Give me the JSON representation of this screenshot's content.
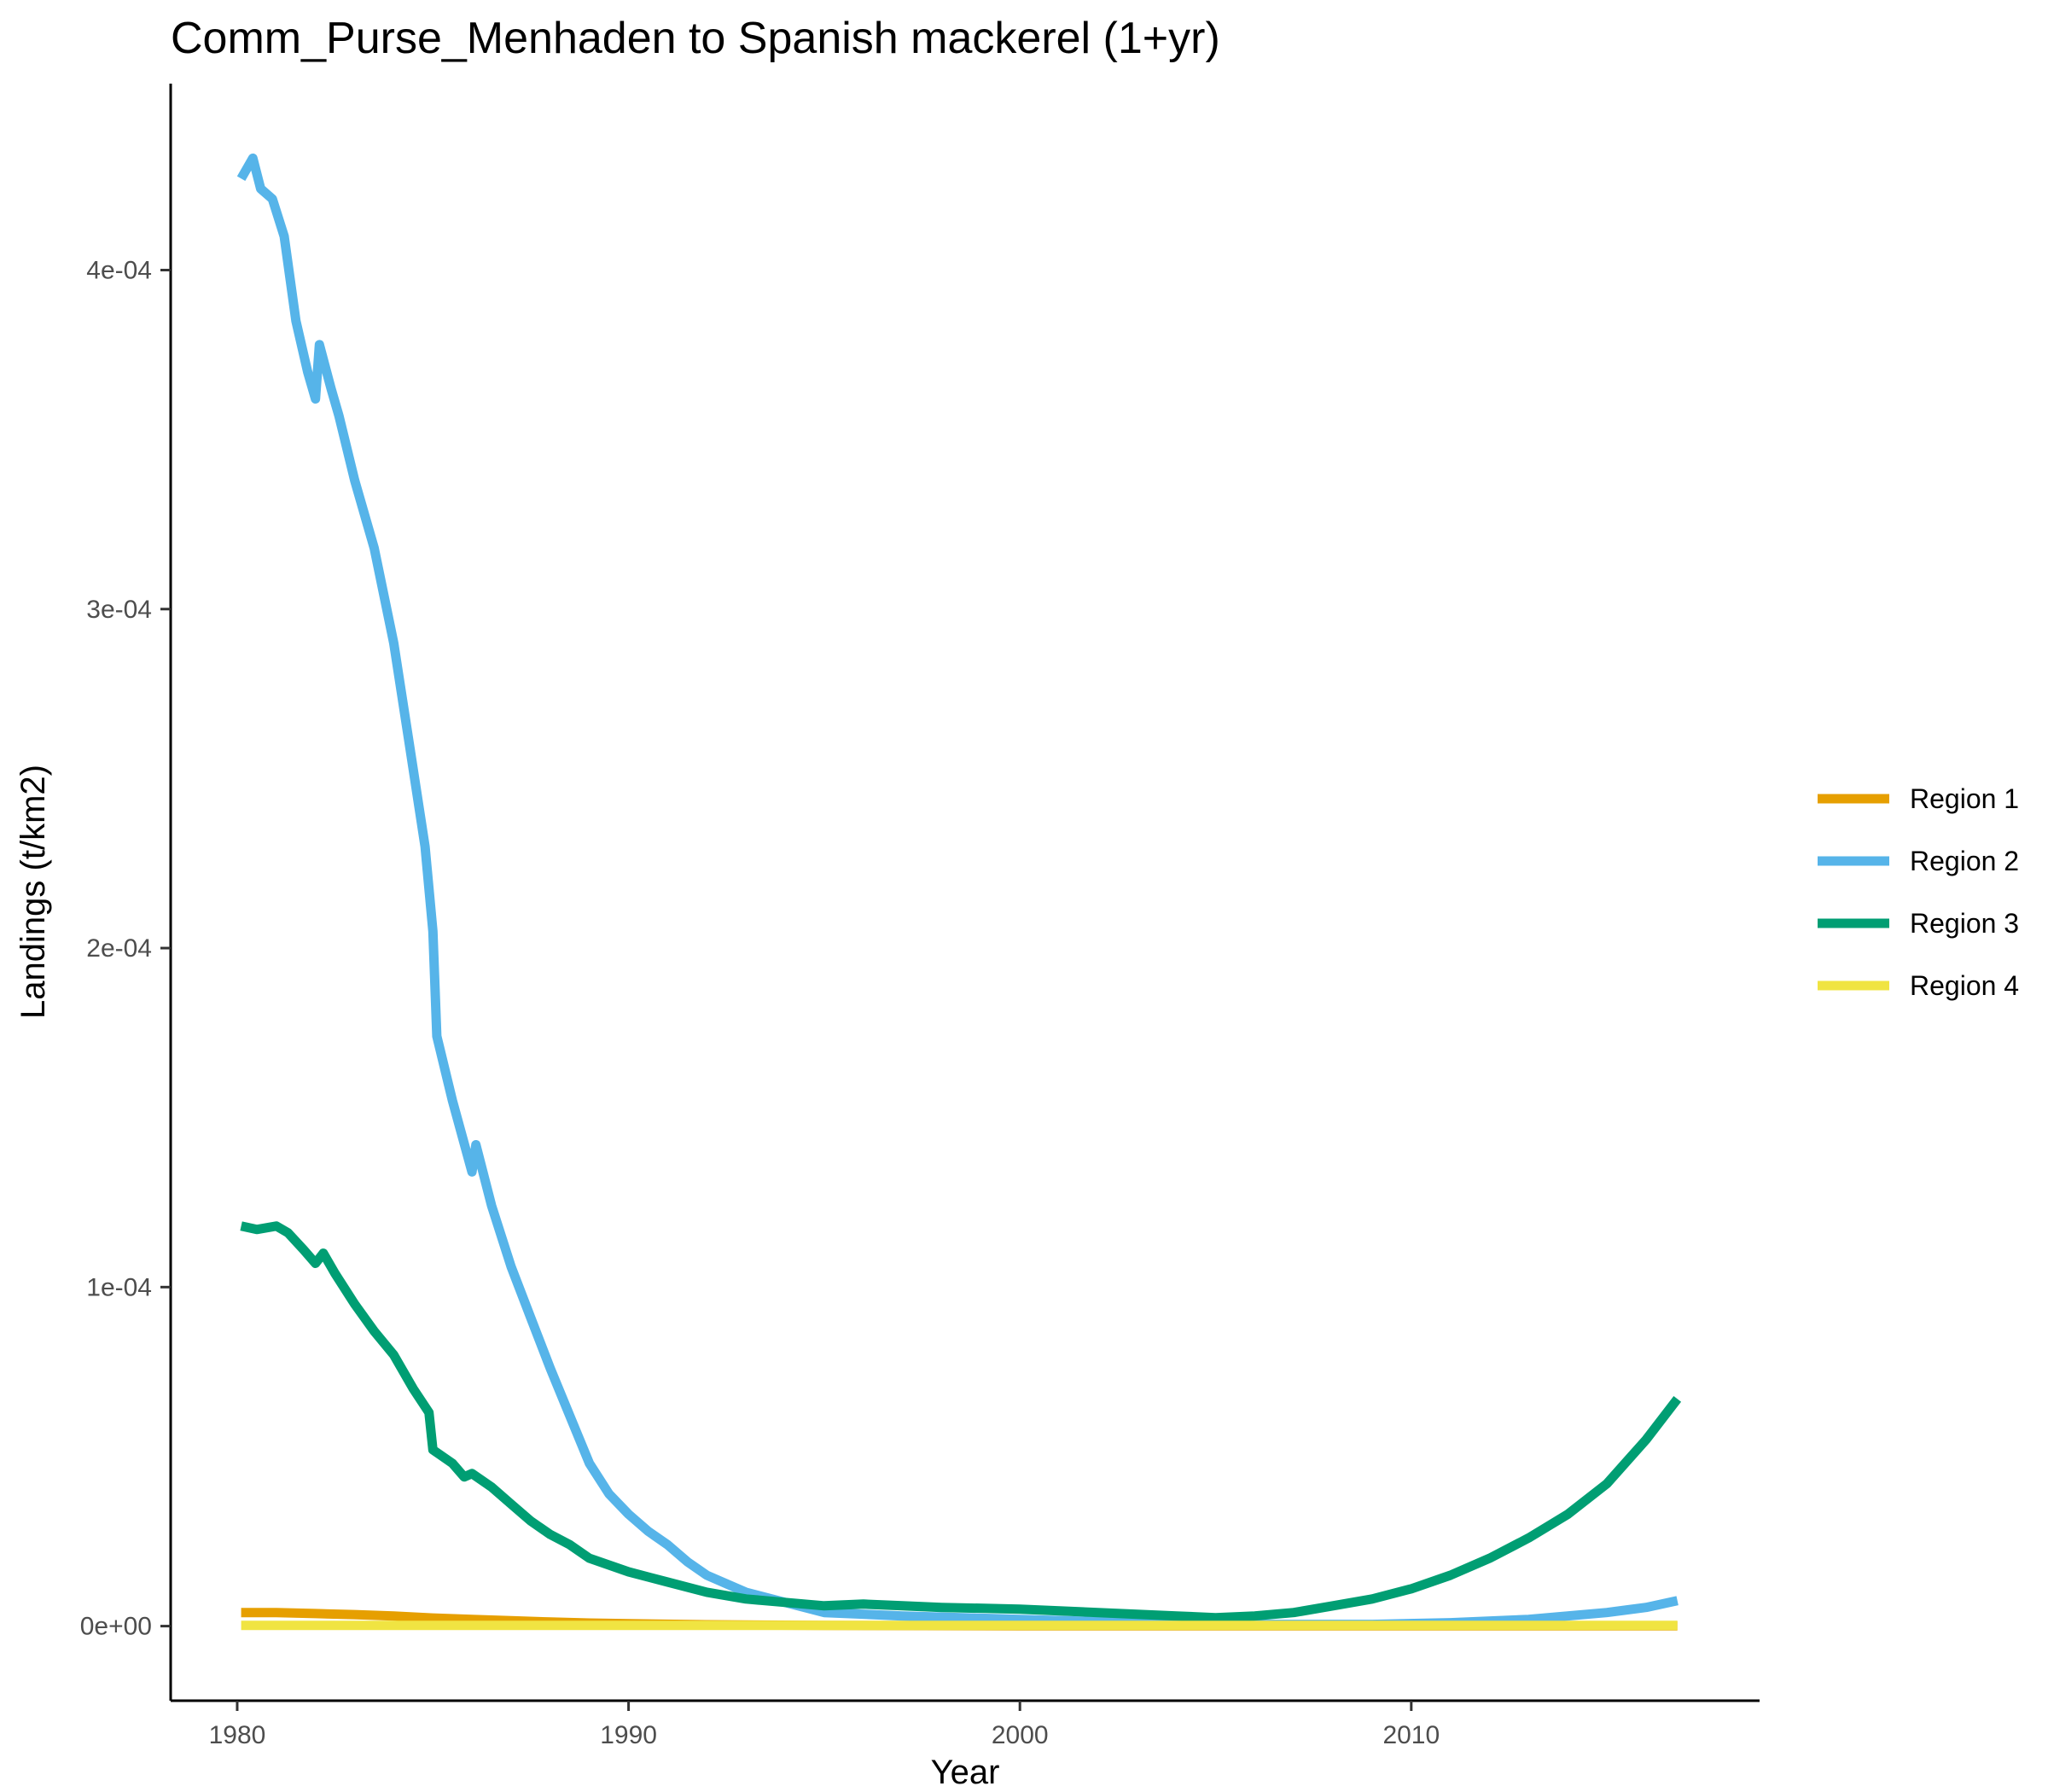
{
  "chart_data": {
    "type": "line",
    "title": "Comm_Purse_Menhaden to Spanish mackerel (1+yr)",
    "xlabel": "Year",
    "ylabel": "Landings (t/km2)",
    "xlim": [
      1978.3,
      2018.9
    ],
    "ylim": [
      -2.2e-05,
      0.000455
    ],
    "xticks": [
      1980,
      1990,
      2000,
      2010
    ],
    "xtick_labels": [
      "1980",
      "1990",
      "2000",
      "2010"
    ],
    "yticks": [
      0,
      0.0001,
      0.0002,
      0.0003,
      0.0004
    ],
    "ytick_labels": [
      "0e+00",
      "1e-04",
      "2e-04",
      "3e-04",
      "4e-04"
    ],
    "grid": false,
    "legend_position": "right",
    "series": [
      {
        "name": "Region 1",
        "color": "#E69F00",
        "x": [
          1980.1,
          1981,
          1982,
          1983,
          1984,
          1985,
          1986,
          1987,
          1988,
          1989,
          1990,
          1992,
          1995,
          2000,
          2005,
          2010,
          2016.8
        ],
        "y": [
          4e-06,
          4e-06,
          3.7e-06,
          3.4e-06,
          3e-06,
          2.4e-06,
          2e-06,
          1.6e-06,
          1.2e-06,
          9e-07,
          7e-07,
          4e-07,
          2e-07,
          1e-07,
          1e-07,
          1e-07,
          1e-07
        ]
      },
      {
        "name": "Region 2",
        "color": "#56B4E9",
        "x": [
          1980.1,
          1980.4,
          1980.6,
          1980.9,
          1981.2,
          1981.5,
          1981.8,
          1982.0,
          1982.1,
          1982.4,
          1982.6,
          1983.0,
          1983.5,
          1984.0,
          1984.4,
          1984.8,
          1985.0,
          1985.1,
          1985.5,
          1986.0,
          1986.1,
          1986.5,
          1987.0,
          1987.5,
          1988.0,
          1988.5,
          1989.0,
          1989.5,
          1990.0,
          1990.5,
          1991.0,
          1991.5,
          1992.0,
          1993.0,
          1994.0,
          1995.0,
          1997.0,
          2000.0,
          2003.0,
          2006.0,
          2009.0,
          2011.0,
          2013.0,
          2015.0,
          2016.0,
          2016.8
        ],
        "y": [
          0.000427,
          0.000433,
          0.000424,
          0.000421,
          0.00041,
          0.000385,
          0.00037,
          0.000362,
          0.000378,
          0.000365,
          0.000357,
          0.000338,
          0.000318,
          0.00029,
          0.00026,
          0.00023,
          0.000205,
          0.000174,
          0.000155,
          0.000134,
          0.000142,
          0.000124,
          0.000106,
          9.1e-05,
          7.6e-05,
          6.2e-05,
          4.8e-05,
          3.9e-05,
          3.3e-05,
          2.8e-05,
          2.4e-05,
          1.9e-05,
          1.5e-05,
          1e-05,
          7e-06,
          4e-06,
          3e-06,
          2e-06,
          1e-06,
          5e-07,
          5e-07,
          1e-06,
          2e-06,
          4e-06,
          5.5e-06,
          7.5e-06
        ]
      },
      {
        "name": "Region 3",
        "color": "#009E73",
        "x": [
          1980.1,
          1980.5,
          1981.0,
          1981.3,
          1981.7,
          1982.0,
          1982.2,
          1982.5,
          1983.0,
          1983.5,
          1984.0,
          1984.5,
          1984.9,
          1985.0,
          1985.5,
          1985.8,
          1986.0,
          1986.5,
          1987.0,
          1987.5,
          1988.0,
          1988.5,
          1989.0,
          1990.0,
          1991.0,
          1992.0,
          1993.0,
          1994.0,
          1995.0,
          1996.0,
          1997.0,
          1998.0,
          2000.0,
          2002.0,
          2004.0,
          2005.0,
          2006.0,
          2007.0,
          2008.0,
          2009.0,
          2010.0,
          2011.0,
          2012.0,
          2013.0,
          2014.0,
          2015.0,
          2016.0,
          2016.8
        ],
        "y": [
          0.000118,
          0.000117,
          0.000118,
          0.000116,
          0.000111,
          0.000107,
          0.00011,
          0.000104,
          9.5e-05,
          8.7e-05,
          8e-05,
          7e-05,
          6.3e-05,
          5.2e-05,
          4.8e-05,
          4.4e-05,
          4.5e-05,
          4.1e-05,
          3.6e-05,
          3.1e-05,
          2.7e-05,
          2.4e-05,
          2e-05,
          1.6e-05,
          1.3e-05,
          1e-05,
          8e-06,
          7e-06,
          6e-06,
          6.5e-06,
          6e-06,
          5.5e-06,
          5e-06,
          4e-06,
          3e-06,
          2.5e-06,
          3e-06,
          4e-06,
          6e-06,
          8e-06,
          1.1e-05,
          1.5e-05,
          2e-05,
          2.6e-05,
          3.3e-05,
          4.2e-05,
          5.5e-05,
          6.7e-05
        ]
      },
      {
        "name": "Region 4",
        "color": "#F0E442",
        "x": [
          1980.1,
          1990.0,
          2000.0,
          2010.0,
          2016.8
        ],
        "y": [
          2e-07,
          2e-07,
          2e-07,
          2e-07,
          2e-07
        ]
      }
    ]
  }
}
